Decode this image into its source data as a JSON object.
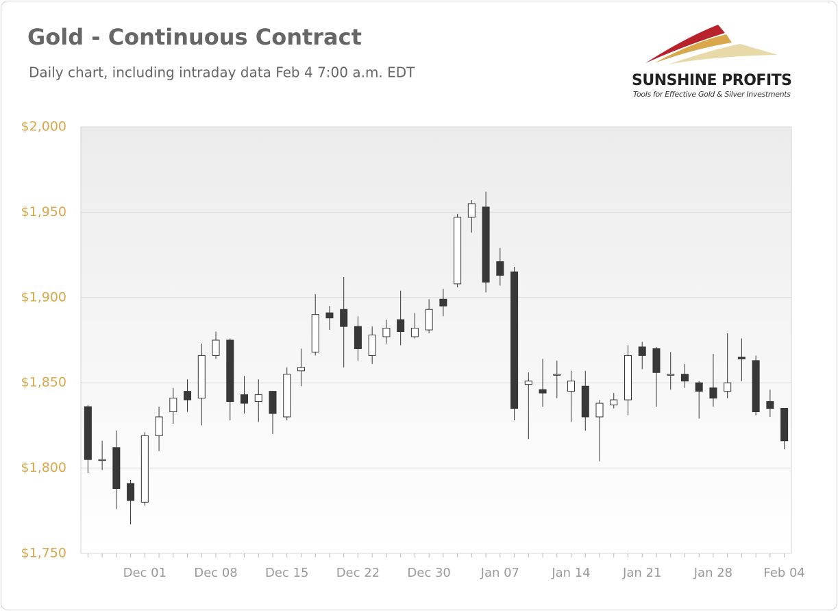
{
  "logo": {
    "name": "SUNSHINE PROFITS",
    "tagline": "Tools for Effective Gold & Silver Investments"
  },
  "chart_data": {
    "type": "candlestick",
    "title": "Gold - Continuous Contract",
    "subtitle": "Daily chart, including intraday data Feb 4 7:00 a.m. EDT",
    "categories": [
      null,
      null,
      null,
      null,
      "Dec 01",
      null,
      null,
      null,
      null,
      "Dec 08",
      null,
      null,
      null,
      null,
      "Dec 15",
      null,
      null,
      null,
      null,
      "Dec 22",
      null,
      null,
      null,
      null,
      "Dec 30",
      null,
      null,
      null,
      null,
      "Jan 07",
      null,
      null,
      null,
      null,
      "Jan 14",
      null,
      null,
      null,
      null,
      "Jan 21",
      null,
      null,
      null,
      null,
      "Jan 28",
      null,
      null,
      null,
      null,
      "Feb 04"
    ],
    "open": [
      1836,
      1805,
      1812,
      1791,
      1780,
      1819,
      1833,
      1845,
      1841,
      1866,
      1875,
      1843,
      1839,
      1845,
      1830,
      1857,
      1868,
      1891,
      1893,
      1883,
      1866,
      1877,
      1887,
      1877,
      1881,
      1899,
      1908,
      1947,
      1953,
      1921,
      1915,
      1849,
      1846,
      1855,
      1845,
      1848,
      1830,
      1837,
      1840,
      1871,
      1870,
      1855,
      1855,
      1850,
      1847,
      1845,
      1865,
      1863,
      1839,
      1835
    ],
    "high": [
      1837,
      1816,
      1822,
      1793,
      1821,
      1836,
      1847,
      1852,
      1873,
      1880,
      1876,
      1854,
      1852,
      1845,
      1859,
      1870,
      1902,
      1895,
      1912,
      1889,
      1883,
      1887,
      1904,
      1891,
      1899,
      1905,
      1949,
      1957,
      1962,
      1929,
      1918,
      1856,
      1864,
      1863,
      1857,
      1857,
      1840,
      1844,
      1872,
      1874,
      1871,
      1868,
      1861,
      1851,
      1867,
      1879,
      1876,
      1866,
      1846,
      1835
    ],
    "low": [
      1797,
      1799,
      1776,
      1767,
      1778,
      1810,
      1826,
      1833,
      1825,
      1864,
      1828,
      1832,
      1827,
      1820,
      1828,
      1848,
      1866,
      1881,
      1859,
      1863,
      1861,
      1873,
      1872,
      1876,
      1879,
      1889,
      1906,
      1938,
      1903,
      1907,
      1828,
      1817,
      1836,
      1841,
      1827,
      1822,
      1804,
      1835,
      1831,
      1858,
      1836,
      1846,
      1847,
      1829,
      1836,
      1841,
      1851,
      1831,
      1830,
      1811
    ],
    "close": [
      1805,
      1805,
      1788,
      1781,
      1819,
      1830,
      1841,
      1840,
      1866,
      1875,
      1839,
      1838,
      1843,
      1832,
      1855,
      1859,
      1890,
      1888,
      1883,
      1870,
      1878,
      1882,
      1880,
      1882,
      1893,
      1895,
      1947,
      1955,
      1909,
      1913,
      1835,
      1851,
      1844,
      1855,
      1851,
      1830,
      1838,
      1840,
      1866,
      1866,
      1856,
      1855,
      1851,
      1845,
      1841,
      1850,
      1864,
      1833,
      1835,
      1816
    ],
    "up_color": "#ffffff",
    "down_color": "#383838",
    "ylim": [
      1750,
      2000
    ],
    "yticks": [
      {
        "value": 1750,
        "label": "$1,750"
      },
      {
        "value": 1800,
        "label": "$1,800"
      },
      {
        "value": 1850,
        "label": "$1,850"
      },
      {
        "value": 1900,
        "label": "$1,900"
      },
      {
        "value": 1950,
        "label": "$1,950"
      },
      {
        "value": 2000,
        "label": "$2,000"
      }
    ],
    "grid": true
  }
}
